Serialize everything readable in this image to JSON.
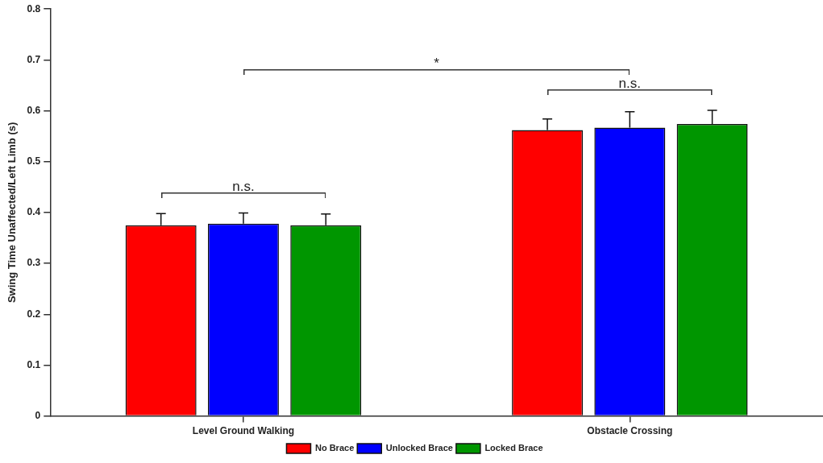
{
  "chart_data": {
    "type": "bar",
    "ylabel": "Swing Time Unaffected/Left Limb (s)",
    "categories": [
      "Level Ground Walking",
      "Obstacle Crossing"
    ],
    "series": [
      {
        "name": "No Brace",
        "color": "#ff0000",
        "values": [
          0.375,
          0.562
        ],
        "errors": [
          [
            0.375,
            0.398
          ],
          [
            0.562,
            0.584
          ]
        ]
      },
      {
        "name": "Unlocked Brace",
        "color": "#0000ff",
        "values": [
          0.378,
          0.567
        ],
        "errors": [
          [
            0.378,
            0.399
          ],
          [
            0.567,
            0.598
          ]
        ]
      },
      {
        "name": "Locked Brace",
        "color": "#009600",
        "values": [
          0.375,
          0.574
        ],
        "errors": [
          [
            0.375,
            0.397
          ],
          [
            0.574,
            0.601
          ]
        ]
      }
    ],
    "ylim": [
      0,
      0.8
    ],
    "yticks": [
      0,
      0.1,
      0.2,
      0.3,
      0.4,
      0.5,
      0.6,
      0.7,
      0.8
    ],
    "legend": "bottom",
    "annotations": [
      "n.s.",
      "n.s.",
      "*"
    ]
  }
}
